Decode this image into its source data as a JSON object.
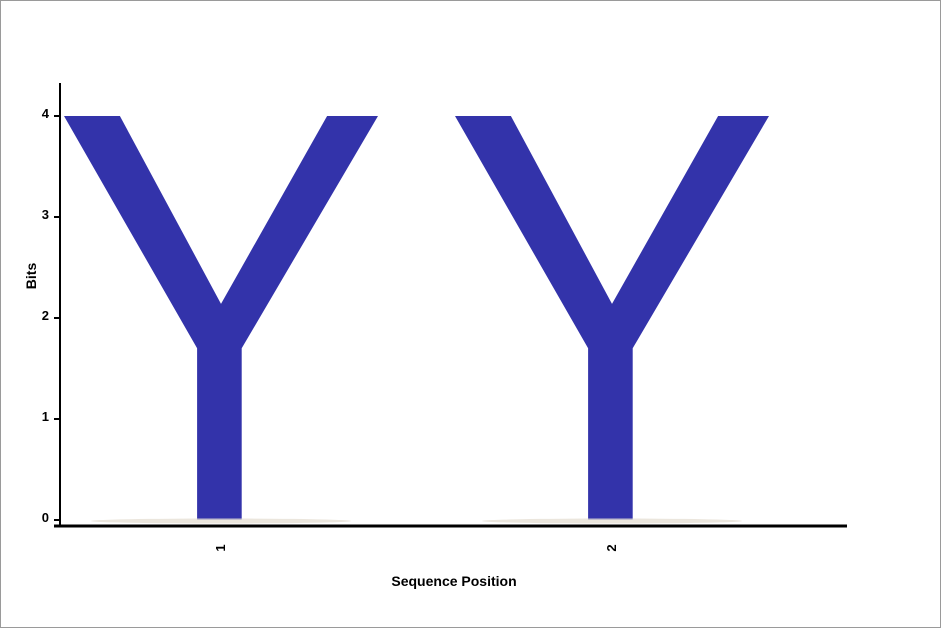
{
  "chart_data": {
    "type": "sequence-logo",
    "xlabel": "Sequence Position",
    "ylabel": "Bits",
    "ylim": [
      0,
      4
    ],
    "y_ticks": [
      "0",
      "1",
      "2",
      "3",
      "4"
    ],
    "positions": [
      {
        "label": "1",
        "letters": [
          {
            "letter": "Y",
            "bits": 4.0,
            "color": "#3333aa"
          }
        ]
      },
      {
        "label": "2",
        "letters": [
          {
            "letter": "Y",
            "bits": 4.0,
            "color": "#3333aa"
          }
        ]
      }
    ],
    "grid": false,
    "legend": "none"
  }
}
